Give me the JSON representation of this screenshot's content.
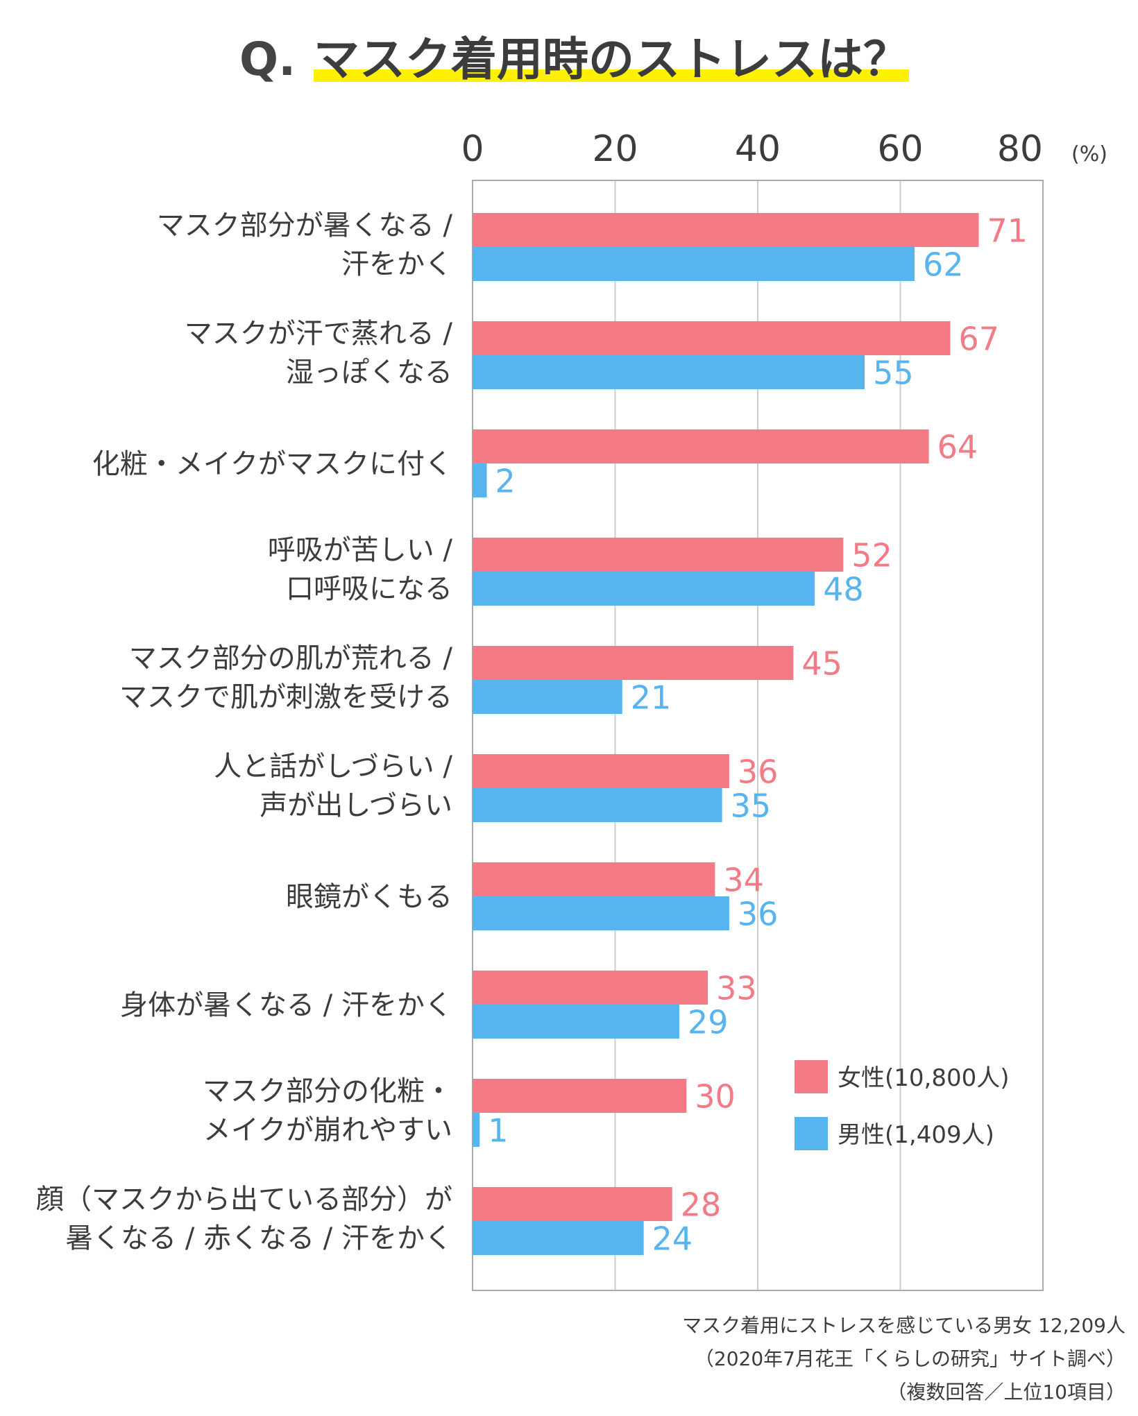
{
  "header": {
    "q_prefix": "Q.",
    "title": "マスク着用時のストレスは？"
  },
  "chart_data": {
    "type": "bar",
    "orientation": "horizontal",
    "unit": "(%)",
    "xlim": [
      0,
      80
    ],
    "ticks": [
      0,
      20,
      40,
      60,
      80
    ],
    "grid": true,
    "legend_position": "bottom-right",
    "categories": [
      [
        "マスク部分が暑くなる /",
        "汗をかく"
      ],
      [
        "マスクが汗で蒸れる /",
        "湿っぽくなる"
      ],
      [
        "化粧・メイクがマスクに付く"
      ],
      [
        "呼吸が苦しい /",
        "口呼吸になる"
      ],
      [
        "マスク部分の肌が荒れる /",
        "マスクで肌が刺激を受ける"
      ],
      [
        "人と話がしづらい /",
        "声が出しづらい"
      ],
      [
        "眼鏡がくもる"
      ],
      [
        "身体が暑くなる / 汗をかく"
      ],
      [
        "マスク部分の化粧・",
        "メイクが崩れやすい"
      ],
      [
        "顔（マスクから出ている部分）が",
        "暑くなる / 赤くなる / 汗をかく"
      ]
    ],
    "series": [
      {
        "name": "女性(10,800人)",
        "color": "#f47a86",
        "values": [
          71,
          67,
          64,
          52,
          45,
          36,
          34,
          33,
          30,
          28
        ]
      },
      {
        "name": "男性(1,409人)",
        "color": "#56b4ef",
        "values": [
          62,
          55,
          2,
          48,
          21,
          35,
          36,
          29,
          1,
          24
        ]
      }
    ]
  },
  "footnote": {
    "line1": "マスク着用にストレスを感じている男女 12,209人",
    "line2": "（2020年7月花王「くらしの研究」サイト調べ）",
    "line3": "（複数回答／上位10項目）"
  },
  "colors": {
    "title_highlight": "#fff200",
    "text": "#3c3c3c",
    "grid": "#cccccc"
  }
}
